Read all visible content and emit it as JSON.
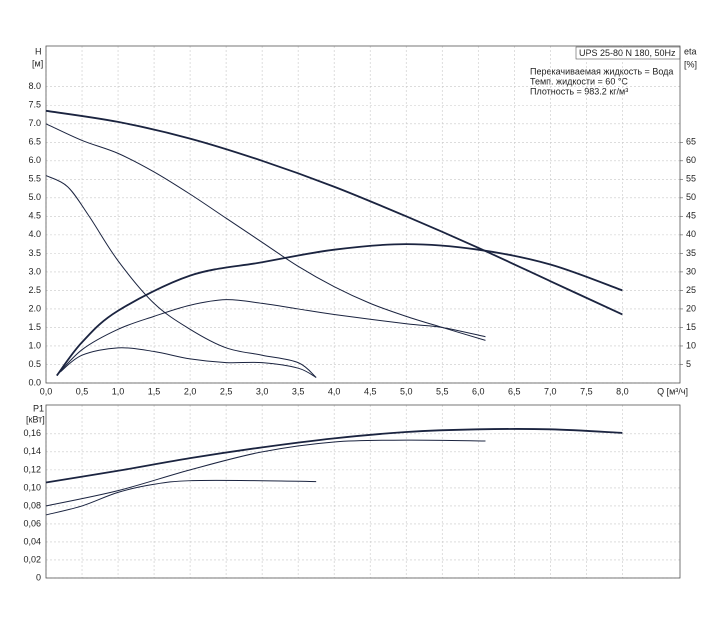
{
  "chart_data": [
    {
      "type": "line",
      "title": "UPS 25-80 N 180, 50Hz",
      "annotations": [
        "Перекачиваемая жидкость = Вода",
        "Темп. жидкости = 60 °C",
        "Плотность = 983.2 кг/м³"
      ],
      "ylabel": "H",
      "yunit": "[м]",
      "y2label": "eta",
      "y2unit": "[%]",
      "xlabel": "Q [м³/ч]",
      "xlim": [
        0,
        8.8
      ],
      "xticks": [
        {
          "value": 0,
          "label": "0,0"
        },
        {
          "value": 0.5,
          "label": "0,5"
        },
        {
          "value": 1,
          "label": "1,0"
        },
        {
          "value": 1.5,
          "label": "1,5"
        },
        {
          "value": 2,
          "label": "2,0"
        },
        {
          "value": 2.5,
          "label": "2,5"
        },
        {
          "value": 3,
          "label": "3,0"
        },
        {
          "value": 3.5,
          "label": "3,5"
        },
        {
          "value": 4,
          "label": "4,0"
        },
        {
          "value": 4.5,
          "label": "4,5"
        },
        {
          "value": 5,
          "label": "5,0"
        },
        {
          "value": 5.5,
          "label": "5,5"
        },
        {
          "value": 6,
          "label": "6,0"
        },
        {
          "value": 6.5,
          "label": "6,5"
        },
        {
          "value": 7,
          "label": "7,0"
        },
        {
          "value": 7.5,
          "label": "7,5"
        },
        {
          "value": 8,
          "label": "8,0"
        }
      ],
      "ylim": [
        0,
        9.1
      ],
      "yticks": [
        {
          "value": 0,
          "label": "0.0"
        },
        0.5,
        {
          "value": 1,
          "label": "1.0"
        },
        1.5,
        {
          "value": 2,
          "label": "2.0"
        },
        2.5,
        {
          "value": 3,
          "label": "3.0"
        },
        3.5,
        {
          "value": 4,
          "label": "4.0"
        },
        4.5,
        {
          "value": 5,
          "label": "5.0"
        },
        5.5,
        {
          "value": 6,
          "label": "6.0"
        },
        6.5,
        {
          "value": 7,
          "label": "7.0"
        },
        7.5,
        {
          "value": 8,
          "label": "8.0"
        }
      ],
      "y2lim": [
        0,
        91
      ],
      "y2ticks": [
        5,
        10,
        15,
        20,
        25,
        30,
        35,
        40,
        45,
        50,
        55,
        60,
        65
      ],
      "grid": true,
      "series": [
        {
          "color": "#1b2440",
          "x": [
            0,
            1,
            2,
            3,
            4,
            5,
            6,
            7,
            8
          ],
          "values": [
            7.35,
            7.05,
            6.6,
            6.0,
            5.3,
            4.5,
            3.65,
            2.75,
            1.85
          ]
        },
        {
          "color": "#1b2440",
          "x": [
            0,
            0.5,
            1,
            1.5,
            2,
            2.5,
            3,
            3.5,
            4,
            4.5,
            5,
            5.5,
            6.1
          ],
          "values": [
            7.0,
            6.55,
            6.2,
            5.7,
            5.1,
            4.45,
            3.8,
            3.15,
            2.6,
            2.15,
            1.8,
            1.5,
            1.15
          ]
        },
        {
          "color": "#1b2440",
          "x": [
            0,
            0.3,
            0.6,
            1,
            1.5,
            2,
            2.5,
            3,
            3.5,
            3.75
          ],
          "values": [
            5.6,
            5.3,
            4.5,
            3.3,
            2.15,
            1.45,
            0.95,
            0.75,
            0.55,
            0.15
          ]
        },
        {
          "color": "#1b2440",
          "axis": "y2",
          "x": [
            0.15,
            0.5,
            1,
            2,
            3,
            4,
            5,
            6,
            7,
            8
          ],
          "values": [
            2,
            11,
            19.5,
            29,
            32.6,
            36,
            37.5,
            36,
            32,
            25
          ]
        },
        {
          "color": "#1b2440",
          "axis": "y2",
          "x": [
            0.15,
            0.5,
            1,
            1.5,
            2,
            2.5,
            3,
            3.5,
            4,
            5,
            5.5,
            6.1
          ],
          "values": [
            2,
            9,
            14.5,
            18,
            21,
            22.5,
            21.5,
            20,
            18.5,
            16,
            15,
            12.5
          ]
        },
        {
          "color": "#1b2440",
          "axis": "y2",
          "x": [
            0.2,
            0.5,
            1,
            1.5,
            2,
            2.5,
            3,
            3.5,
            3.75
          ],
          "values": [
            3,
            7.5,
            9.5,
            8.5,
            6.5,
            5.5,
            5.5,
            4,
            1.5
          ]
        }
      ]
    },
    {
      "type": "line",
      "ylabel": "P1",
      "yunit": "[кВт]",
      "xlim": [
        0,
        8.8
      ],
      "xticks": [
        0,
        0.5,
        1,
        1.5,
        2,
        2.5,
        3,
        3.5,
        4,
        4.5,
        5,
        5.5,
        6,
        6.5,
        7,
        7.5,
        8
      ],
      "ylim": [
        0,
        0.192
      ],
      "yticks": [
        0,
        {
          "value": 0.02,
          "label": "0,02"
        },
        {
          "value": 0.04,
          "label": "0,04"
        },
        {
          "value": 0.06,
          "label": "0,06"
        },
        {
          "value": 0.08,
          "label": "0,08"
        },
        {
          "value": 0.1,
          "label": "0,10"
        },
        {
          "value": 0.12,
          "label": "0,12"
        },
        {
          "value": 0.14,
          "label": "0,14"
        },
        {
          "value": 0.16,
          "label": "0,16"
        }
      ],
      "grid": true,
      "series": [
        {
          "color": "#1b2440",
          "x": [
            0,
            1,
            2,
            3,
            4,
            5,
            6,
            7,
            8
          ],
          "values": [
            0.106,
            0.119,
            0.133,
            0.145,
            0.155,
            0.162,
            0.165,
            0.165,
            0.161
          ]
        },
        {
          "color": "#1b2440",
          "x": [
            0,
            1,
            2,
            3,
            4,
            5,
            6.1
          ],
          "values": [
            0.08,
            0.097,
            0.12,
            0.14,
            0.151,
            0.153,
            0.152
          ]
        },
        {
          "color": "#1b2440",
          "x": [
            0,
            0.5,
            1,
            1.5,
            2,
            3,
            3.75
          ],
          "values": [
            0.07,
            0.08,
            0.095,
            0.104,
            0.108,
            0.108,
            0.107
          ]
        }
      ]
    }
  ]
}
